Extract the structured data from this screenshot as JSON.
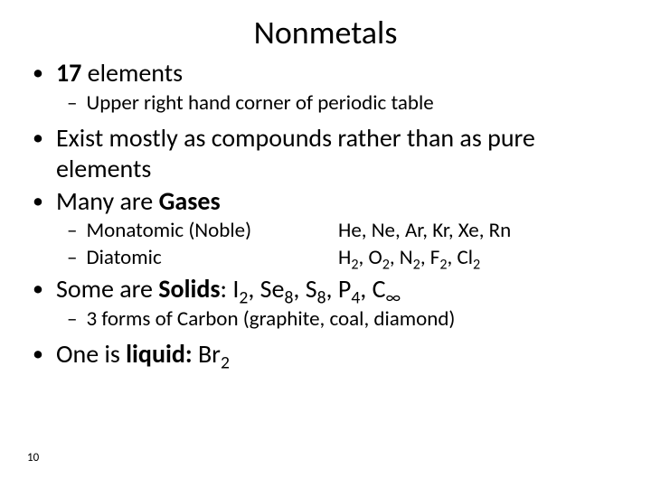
{
  "title": "Nonmetals",
  "bullets": {
    "b1_strong": "17",
    "b1_rest": " elements",
    "b1_sub": "Upper right hand corner of periodic table",
    "b2": "Exist mostly as compounds rather than as pure elements",
    "b3_pre": "Many are ",
    "b3_strong": "Gases",
    "gases": {
      "mono_label": "Monatomic (Noble)",
      "mono_list": "He, Ne, Ar, Kr, Xe, Rn",
      "di_label": "Diatomic",
      "di_list_parts": [
        "H",
        "2",
        ", O",
        "2",
        ", N",
        "2",
        ", F",
        "2",
        ", Cl",
        "2"
      ]
    },
    "b4_pre": "Some are ",
    "b4_strong": "Solids",
    "b4_colon": ":",
    "b4_list_parts": [
      "  I",
      "2",
      ", Se",
      "8",
      ", S",
      "8",
      ", P",
      "4",
      ", C",
      "∞"
    ],
    "b4_sub": "3 forms of Carbon (graphite, coal, diamond)",
    "b5_pre": "One is ",
    "b5_strong": "liquid:",
    "b5_list_parts": [
      "  Br",
      "2"
    ]
  },
  "page_number": "10",
  "colors": {
    "text": "#000000",
    "bg": "#ffffff"
  },
  "fontsize": {
    "title": 36,
    "l1": 28,
    "l2": 23,
    "pagenum": 13
  }
}
